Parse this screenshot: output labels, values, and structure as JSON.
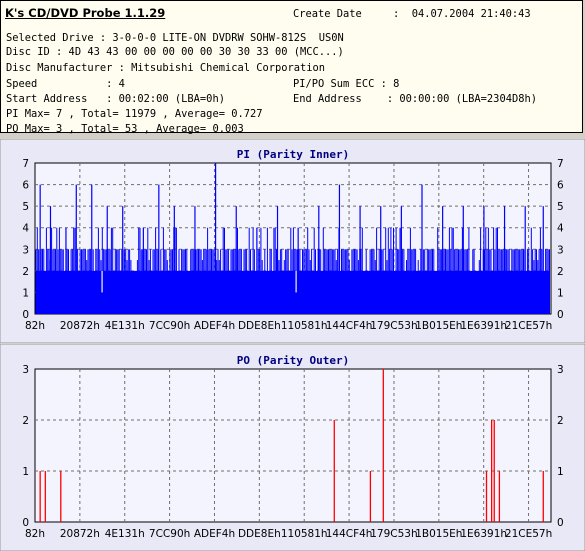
{
  "header": {
    "app_title": "K's CD/DVD Probe 1.1.29",
    "create_date_label": "Create Date",
    "create_date_value": ":  04.07.2004 21:40:43",
    "selected_drive": "Selected Drive : 3-0-0-0 LITE-ON DVDRW SOHW-812S  US0N",
    "disc_id": "Disc ID : 4D 43 43 00 00 00 00 00 30 30 33 00 (MCC...)",
    "disc_manufacturer": "Disc Manufacturer : Mitsubishi Chemical Corporation",
    "speed": "Speed           : 4",
    "pi_po_sum_ecc": "PI/PO Sum ECC : 8",
    "start_address": "Start Address   : 00:02:00 (LBA=0h)",
    "end_address": "End Address    : 00:00:00 (LBA=2304D8h)",
    "pi_stats": "PI Max= 7 , Total= 11979 , Average= 0.727",
    "po_stats": "PO Max= 3 , Total= 53 , Average= 0.003"
  },
  "colors": {
    "pi_series": "#0000ff",
    "po_series": "#ff0000",
    "grid": "#6e6e6e",
    "plot_bg": "#f4f4ff",
    "panel_bg": "#e8e8f6"
  },
  "chart_data": [
    {
      "type": "bar",
      "title": "PI (Parity Inner)",
      "ylim": [
        0,
        7
      ],
      "y_ticks": [
        "0",
        "1",
        "2",
        "3",
        "4",
        "5",
        "6",
        "7"
      ],
      "x_tick_labels": [
        "82h",
        "20872h",
        "4E131h",
        "7CC90h",
        "ADEF4h",
        "DDE8Eh",
        "110581h",
        "144CF4h",
        "179C53h",
        "1B015Eh",
        "1E6391h",
        "21CE57h"
      ],
      "baseline": 2,
      "peaks": [
        {
          "x": 0.01,
          "y": 6
        },
        {
          "x": 0.03,
          "y": 5
        },
        {
          "x": 0.06,
          "y": 4
        },
        {
          "x": 0.08,
          "y": 6
        },
        {
          "x": 0.11,
          "y": 6
        },
        {
          "x": 0.14,
          "y": 5
        },
        {
          "x": 0.17,
          "y": 5
        },
        {
          "x": 0.21,
          "y": 4
        },
        {
          "x": 0.24,
          "y": 6
        },
        {
          "x": 0.27,
          "y": 5
        },
        {
          "x": 0.31,
          "y": 5
        },
        {
          "x": 0.35,
          "y": 7
        },
        {
          "x": 0.39,
          "y": 5
        },
        {
          "x": 0.43,
          "y": 4
        },
        {
          "x": 0.47,
          "y": 5
        },
        {
          "x": 0.51,
          "y": 4
        },
        {
          "x": 0.55,
          "y": 5
        },
        {
          "x": 0.59,
          "y": 6
        },
        {
          "x": 0.63,
          "y": 5
        },
        {
          "x": 0.67,
          "y": 5
        },
        {
          "x": 0.71,
          "y": 5
        },
        {
          "x": 0.75,
          "y": 6
        },
        {
          "x": 0.79,
          "y": 5
        },
        {
          "x": 0.83,
          "y": 5
        },
        {
          "x": 0.87,
          "y": 5
        },
        {
          "x": 0.91,
          "y": 5
        },
        {
          "x": 0.95,
          "y": 5
        },
        {
          "x": 0.985,
          "y": 5
        }
      ]
    },
    {
      "type": "bar",
      "title": "PO (Parity Outer)",
      "ylim": [
        0,
        3
      ],
      "y_ticks": [
        "0",
        "1",
        "2",
        "3"
      ],
      "x_tick_labels": [
        "82h",
        "20872h",
        "4E131h",
        "7CC90h",
        "ADEF4h",
        "DDE8Eh",
        "110581h",
        "144CF4h",
        "179C53h",
        "1B015Eh",
        "1E6391h",
        "21CE57h"
      ],
      "spikes": [
        {
          "x": 0.01,
          "y": 1
        },
        {
          "x": 0.02,
          "y": 1
        },
        {
          "x": 0.05,
          "y": 1
        },
        {
          "x": 0.58,
          "y": 2
        },
        {
          "x": 0.65,
          "y": 1
        },
        {
          "x": 0.675,
          "y": 3
        },
        {
          "x": 0.875,
          "y": 1
        },
        {
          "x": 0.885,
          "y": 2
        },
        {
          "x": 0.89,
          "y": 2
        },
        {
          "x": 0.9,
          "y": 1
        },
        {
          "x": 0.985,
          "y": 1
        }
      ]
    }
  ]
}
